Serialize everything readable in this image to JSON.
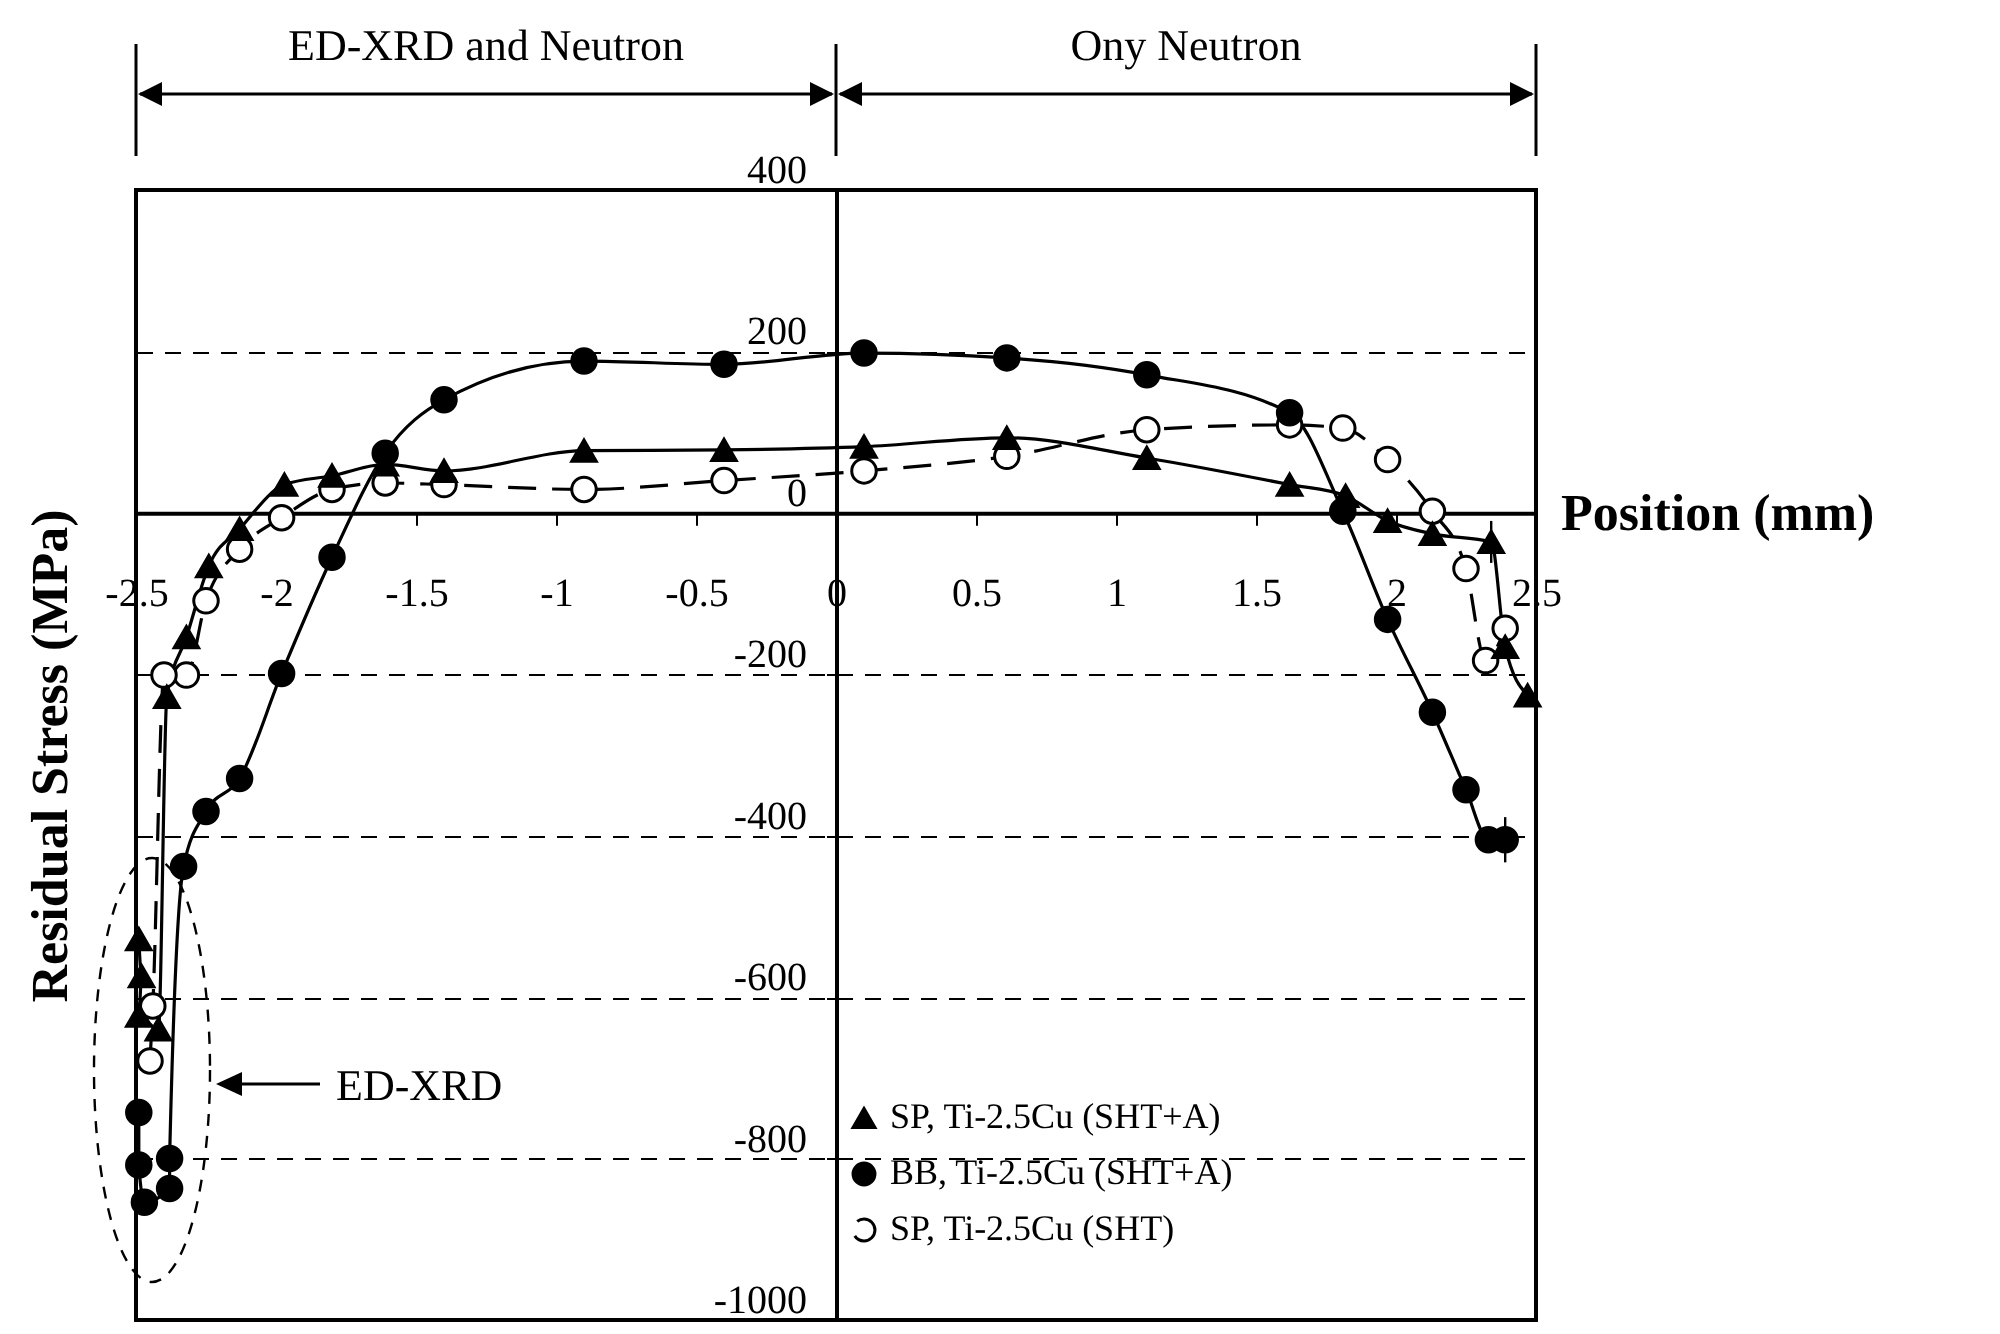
{
  "chart_data": {
    "type": "line",
    "xlabel": "Position (mm)",
    "ylabel": "Residual Stress (MPa)",
    "xlim": [
      -2.5,
      2.5
    ],
    "xticks": [
      -2.5,
      -2,
      -1.5,
      -1,
      -0.5,
      0,
      0.5,
      1,
      1.5,
      2,
      2.5
    ],
    "ylim": [
      -1000,
      400
    ],
    "yticks": [
      -1000,
      -800,
      -600,
      -400,
      -200,
      0,
      200,
      400
    ],
    "grid": "y",
    "legend": "bottom right",
    "annotations": [
      "ED-XRD and Neutron",
      "Ony Neutron",
      "ED-XRD"
    ],
    "series": [
      {
        "name": "SP, Ti-2.5Cu (SHT+A)",
        "color": "#000000",
        "marker": "triangle",
        "line_style": "solid",
        "x": [
          -2.49,
          -2.48,
          -2.49,
          -2.42,
          -2.39,
          -2.32,
          -2.24,
          -2.13,
          -1.97,
          -1.8,
          -1.61,
          -1.4,
          -0.9,
          -0.4,
          0.1,
          0.61,
          1.11,
          1.62,
          1.82,
          1.97,
          2.13,
          2.34,
          2.39,
          2.47
        ],
        "values": [
          -528,
          -574,
          -623,
          -640,
          -228,
          -154,
          -66,
          -20,
          35,
          46,
          60,
          52,
          77,
          78,
          82,
          93,
          68,
          35,
          21,
          -10,
          -26,
          -36,
          -166,
          -226
        ],
        "errors": [
          null,
          null,
          null,
          null,
          null,
          null,
          null,
          null,
          null,
          null,
          null,
          null,
          null,
          null,
          null,
          null,
          null,
          null,
          null,
          null,
          null,
          26,
          null,
          null
        ]
      },
      {
        "name": "BB, Ti-2.5Cu (SHT+A)",
        "color": "#000000",
        "marker": "circle",
        "line_style": "solid",
        "x": [
          -2.49,
          -2.49,
          -2.47,
          -2.38,
          -2.38,
          -2.33,
          -2.25,
          -2.13,
          -1.98,
          -1.8,
          -1.61,
          -1.4,
          -0.9,
          -0.4,
          0.1,
          0.61,
          1.11,
          1.62,
          1.81,
          1.97,
          2.13,
          2.25,
          2.33,
          2.39
        ],
        "values": [
          -743,
          -808,
          -854,
          -837,
          -800,
          -438,
          -370,
          -329,
          -199,
          -55,
          74,
          140,
          188,
          184,
          198,
          192,
          171,
          124,
          2,
          -132,
          -247,
          -343,
          -405,
          -405
        ],
        "errors": [
          null,
          null,
          null,
          null,
          null,
          null,
          null,
          null,
          null,
          null,
          null,
          null,
          null,
          null,
          null,
          null,
          null,
          null,
          null,
          null,
          null,
          null,
          null,
          28
        ]
      },
      {
        "name": "SP, Ti-2.5Cu (SHT)",
        "color": "#000000",
        "marker": "circle",
        "line_style": "dashed",
        "x": [
          -2.45,
          -2.44,
          -2.4,
          -2.32,
          -2.25,
          -2.13,
          -1.98,
          -1.8,
          -1.61,
          -1.4,
          -0.9,
          -0.4,
          0.1,
          0.61,
          1.11,
          1.62,
          1.81,
          1.97,
          2.13,
          2.25,
          2.32,
          2.39
        ],
        "values": [
          -679,
          -611,
          -201,
          -201,
          -109,
          -45,
          -6,
          29,
          37,
          35,
          29,
          40,
          52,
          70,
          103,
          109,
          105,
          66,
          2,
          -69,
          -183,
          -143
        ]
      }
    ]
  }
}
